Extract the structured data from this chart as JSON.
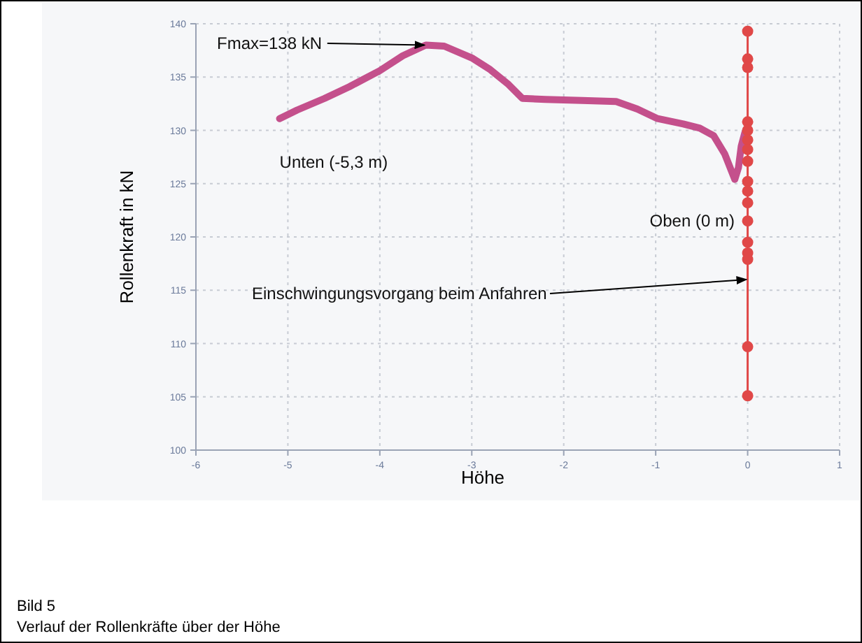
{
  "chart_data": {
    "type": "line",
    "title": "Bild 5",
    "subtitle": "Verlauf der Rollenkräfte über der Höhe",
    "xlabel": "Höhe",
    "ylabel": "Rollenkraft in kN",
    "xlim": [
      -6,
      1
    ],
    "xticks": [
      -6,
      -5,
      -4,
      -3,
      -2,
      -1,
      0,
      1
    ],
    "ylim": [
      100,
      140
    ],
    "yticks": [
      100,
      105,
      110,
      115,
      120,
      125,
      130,
      135,
      140
    ],
    "grid": true,
    "line_style": "solid",
    "series": [
      {
        "color": "#c4508c",
        "marker": "none",
        "x": [
          -5.09,
          -4.9,
          -4.6,
          -4.33,
          -4.0,
          -3.75,
          -3.5,
          -3.3,
          -3.0,
          -2.8,
          -2.6,
          -2.45,
          -2.2,
          -1.8,
          -1.43,
          -1.2,
          -0.98,
          -0.7,
          -0.52,
          -0.37,
          -0.25,
          -0.14,
          -0.1,
          -0.07,
          -0.03
        ],
        "values": [
          131.1,
          131.9,
          133.0,
          134.1,
          135.6,
          137.0,
          138.0,
          137.9,
          136.8,
          135.7,
          134.3,
          133.0,
          132.9,
          132.8,
          132.7,
          132.0,
          131.1,
          130.6,
          130.2,
          129.5,
          127.8,
          125.4,
          126.5,
          128.5,
          129.8
        ]
      },
      {
        "color": "#e04848",
        "marker": "circle",
        "x": [
          0,
          0,
          0,
          0,
          0,
          0,
          0,
          0,
          0,
          0,
          0,
          0,
          0,
          0,
          0,
          0,
          0
        ],
        "values": [
          139.3,
          136.7,
          135.9,
          130.8,
          130.0,
          129.1,
          128.2,
          127.1,
          125.2,
          124.3,
          123.2,
          121.5,
          119.5,
          118.5,
          117.9,
          109.7,
          105.1
        ]
      }
    ],
    "annotations": [
      {
        "text": "Fmax=138 kN",
        "x": -3.5,
        "y": 138
      },
      {
        "text": "Unten (-5,3 m)",
        "x": -5.09,
        "y": 131.1
      },
      {
        "text": "Oben (0 m)",
        "x": 0,
        "y": 121
      },
      {
        "text": "Einschwingungsvorgang beim Anfahren",
        "x": 0,
        "y": 116
      }
    ]
  }
}
